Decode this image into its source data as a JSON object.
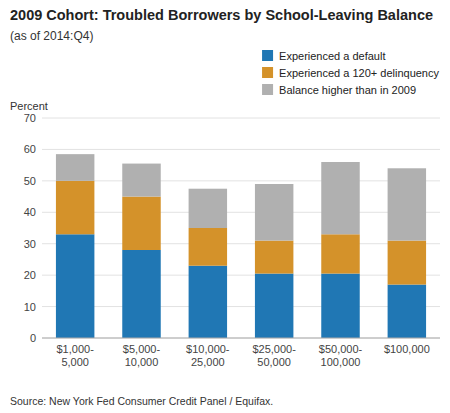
{
  "chart_data": {
    "type": "bar",
    "stacked": true,
    "title": "2009 Cohort: Troubled Borrowers by School-Leaving Balance",
    "subtitle": "(as of 2014:Q4)",
    "y_label": "Percent",
    "source": "Source: New York Fed Consumer Credit Panel / Equifax.",
    "categories": [
      "$1,000-\n5,000",
      "$5,000-\n10,000",
      "$10,000-\n25,000",
      "$25,000-\n50,000",
      "$50,000-\n100,000",
      "$100,000"
    ],
    "series": [
      {
        "name": "Experienced a default",
        "color": "#2077b4",
        "values": [
          33,
          28,
          23,
          20.5,
          20.5,
          17
        ]
      },
      {
        "name": "Experienced a 120+ delinquency",
        "color": "#d4922a",
        "values": [
          17,
          17,
          12,
          10.5,
          12.5,
          14
        ]
      },
      {
        "name": "Balance higher than in 2009",
        "color": "#b0b0b0",
        "values": [
          8.5,
          10.5,
          12.5,
          18,
          23,
          23
        ]
      }
    ],
    "ylim": [
      0,
      70
    ],
    "yticks": [
      0,
      10,
      20,
      30,
      40,
      50,
      60,
      70
    ],
    "grid": true,
    "legend": "upper right"
  }
}
